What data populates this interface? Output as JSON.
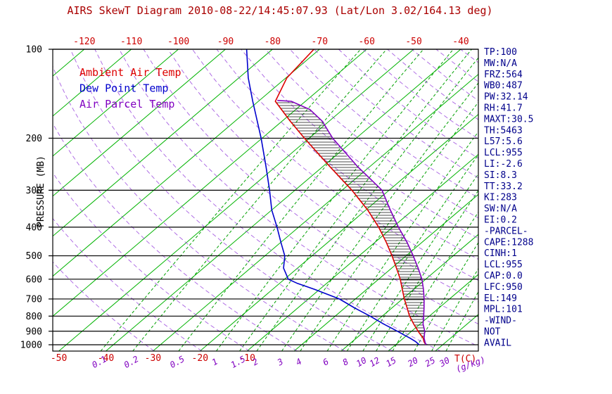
{
  "title": "AIRS SkewT Diagram 2010-08-22/14:45:07.93 (Lat/Lon 3.02/164.13 deg)",
  "colors": {
    "title": "#aa0000",
    "temp_axis": "#cc0000",
    "mixing_axis": "#8000c0",
    "isotherm": "#00b300",
    "mixing_line": "#00a000",
    "adiabat": "#9944dd",
    "pressure_line": "#000000",
    "pressure_text": "#000000",
    "frame": "#000000",
    "hatch": "#000000",
    "stats_text": "#00008b"
  },
  "legend": [
    {
      "label": "Ambient Air Temp",
      "color": "#dd0000"
    },
    {
      "label": "Dew Point Temp",
      "color": "#0000cd"
    },
    {
      "label": "Air Parcel Temp",
      "color": "#8000c0"
    }
  ],
  "axes": {
    "pressure_label": "PRESSURE (MB)",
    "pressure_ticks": [
      100,
      200,
      300,
      400,
      500,
      600,
      700,
      800,
      900,
      1000
    ],
    "top_temp_ticks": [
      -120,
      -110,
      -100,
      -90,
      -80,
      -70,
      -60,
      -50,
      -40
    ],
    "bottom_temp_ticks": [
      -50,
      -40,
      -30,
      -20,
      -10
    ],
    "bottom_temp_unit": "T(C)",
    "mixing_ratio_ticks": [
      0.1,
      0.2,
      0.5,
      1,
      1.5,
      2,
      3,
      4,
      6,
      8,
      10,
      12,
      15,
      20,
      25,
      30
    ],
    "mixing_ratio_unit": "(g/kg)"
  },
  "stats": [
    "TP:100",
    "MW:N/A",
    "FRZ:564",
    "WB0:487",
    "PW:32.14",
    "RH:41.7",
    "MAXT:30.5",
    "TH:5463",
    "L57:5.6",
    "LCL:955",
    "LI:-2.6",
    "SI:8.3",
    "TT:33.2",
    "KI:283",
    "SW:N/A",
    "EI:0.2",
    "-PARCEL-",
    "CAPE:1288",
    "CINH:1",
    "LCL:955",
    "CAP:0.0",
    "LFC:950",
    "EL:149",
    "MPL:101",
    "-WIND-",
    "NOT",
    "AVAIL"
  ],
  "chart_data": {
    "type": "line",
    "projection": "skewT-logP",
    "x_axis_label": "Temperature (C), skewed isotherms",
    "y_axis_label": "Pressure (MB), log scale",
    "pressure_range": [
      100,
      1050
    ],
    "top_axis_temp_range": [
      -120,
      -40
    ],
    "isotherms_C": {
      "start": -120,
      "end": 40,
      "step": 10
    },
    "dry_adiabats_theta_K": {
      "start": 240,
      "end": 470,
      "step": 10
    },
    "mixing_ratio_lines_g_kg": [
      0.1,
      0.2,
      0.5,
      1,
      1.5,
      2,
      3,
      4,
      6,
      8,
      10,
      12,
      15,
      20,
      25,
      30
    ],
    "hatch_between": [
      "Air Parcel Temp",
      "Ambient Air Temp"
    ],
    "hatch_pressure_range": [
      149,
      950
    ],
    "series": [
      {
        "name": "Ambient Air Temp",
        "color": "#dd0000",
        "points_p_T": [
          [
            1000,
            26.4
          ],
          [
            975,
            25.2
          ],
          [
            950,
            24.2
          ],
          [
            925,
            22.8
          ],
          [
            900,
            21.4
          ],
          [
            850,
            18.6
          ],
          [
            800,
            15.8
          ],
          [
            750,
            13.2
          ],
          [
            700,
            10.4
          ],
          [
            650,
            7.6
          ],
          [
            600,
            4.6
          ],
          [
            550,
            1.0
          ],
          [
            500,
            -3.0
          ],
          [
            450,
            -7.6
          ],
          [
            400,
            -13.0
          ],
          [
            350,
            -19.6
          ],
          [
            300,
            -27.9
          ],
          [
            250,
            -38.4
          ],
          [
            200,
            -51.0
          ],
          [
            175,
            -58.3
          ],
          [
            150,
            -66.4
          ],
          [
            125,
            -69.8
          ],
          [
            100,
            -71.2
          ]
        ]
      },
      {
        "name": "Dew Point Temp",
        "color": "#0000cd",
        "points_p_T": [
          [
            1000,
            25.0
          ],
          [
            975,
            23.4
          ],
          [
            950,
            21.4
          ],
          [
            925,
            19.2
          ],
          [
            900,
            17.0
          ],
          [
            850,
            12.2
          ],
          [
            800,
            7.4
          ],
          [
            750,
            2.0
          ],
          [
            700,
            -3.4
          ],
          [
            650,
            -11.0
          ],
          [
            620,
            -16.2
          ],
          [
            600,
            -19.2
          ],
          [
            550,
            -23.0
          ],
          [
            500,
            -25.8
          ],
          [
            450,
            -30.0
          ],
          [
            400,
            -34.6
          ],
          [
            350,
            -40.0
          ],
          [
            300,
            -45.4
          ],
          [
            250,
            -52.0
          ],
          [
            200,
            -60.2
          ],
          [
            150,
            -71.2
          ],
          [
            125,
            -78.0
          ],
          [
            100,
            -85.5
          ]
        ]
      },
      {
        "name": "Air Parcel Temp",
        "color": "#8000c0",
        "points_p_T": [
          [
            1000,
            26.4
          ],
          [
            975,
            25.4
          ],
          [
            950,
            24.4
          ],
          [
            925,
            23.6
          ],
          [
            900,
            22.8
          ],
          [
            850,
            20.6
          ],
          [
            800,
            18.8
          ],
          [
            750,
            16.8
          ],
          [
            700,
            14.6
          ],
          [
            650,
            12.1
          ],
          [
            600,
            9.2
          ],
          [
            550,
            5.6
          ],
          [
            500,
            1.5
          ],
          [
            450,
            -3.2
          ],
          [
            400,
            -8.8
          ],
          [
            350,
            -14.8
          ],
          [
            300,
            -21.5
          ],
          [
            250,
            -32.5
          ],
          [
            200,
            -45.0
          ],
          [
            175,
            -51.5
          ],
          [
            160,
            -57.0
          ],
          [
            150,
            -63.0
          ],
          [
            149,
            -66.2
          ]
        ]
      }
    ]
  }
}
